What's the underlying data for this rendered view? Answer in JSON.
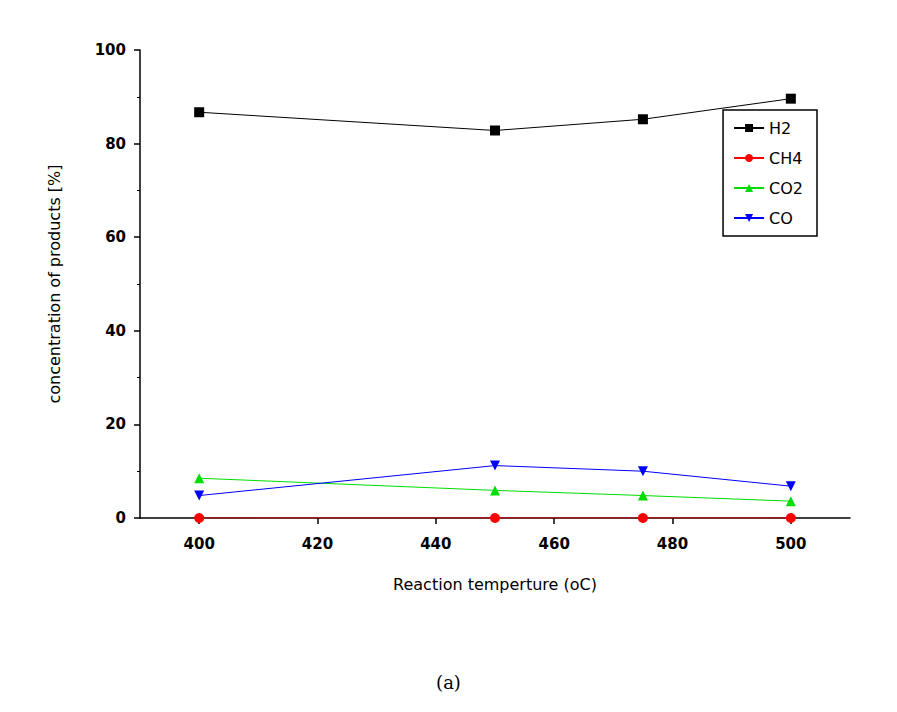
{
  "chart_data": {
    "type": "line",
    "title": "(a)",
    "x_label": "Reaction temperture (oC)",
    "y_label": "concentration of products [%]",
    "x": [
      400,
      450,
      475,
      500
    ],
    "series": [
      {
        "name": "H2",
        "color": "#000000",
        "marker": "square",
        "values": [
          86.7,
          82.8,
          85.2,
          89.6
        ]
      },
      {
        "name": "CH4",
        "color": "#ff0000",
        "marker": "circle",
        "values": [
          0,
          0,
          0,
          0
        ]
      },
      {
        "name": "CO2",
        "color": "#00dd00",
        "marker": "triangle-up",
        "values": [
          8.5,
          5.9,
          4.8,
          3.6
        ]
      },
      {
        "name": "CO",
        "color": "#0000ff",
        "marker": "triangle-down",
        "values": [
          4.8,
          11.2,
          10.0,
          6.8
        ]
      }
    ],
    "xlim": [
      390,
      510
    ],
    "xticks": [
      400,
      420,
      440,
      460,
      480,
      500
    ],
    "ylim": [
      0,
      100
    ],
    "yticks": [
      0,
      20,
      40,
      60,
      80,
      100
    ],
    "grid": false,
    "legend": "upper right"
  }
}
